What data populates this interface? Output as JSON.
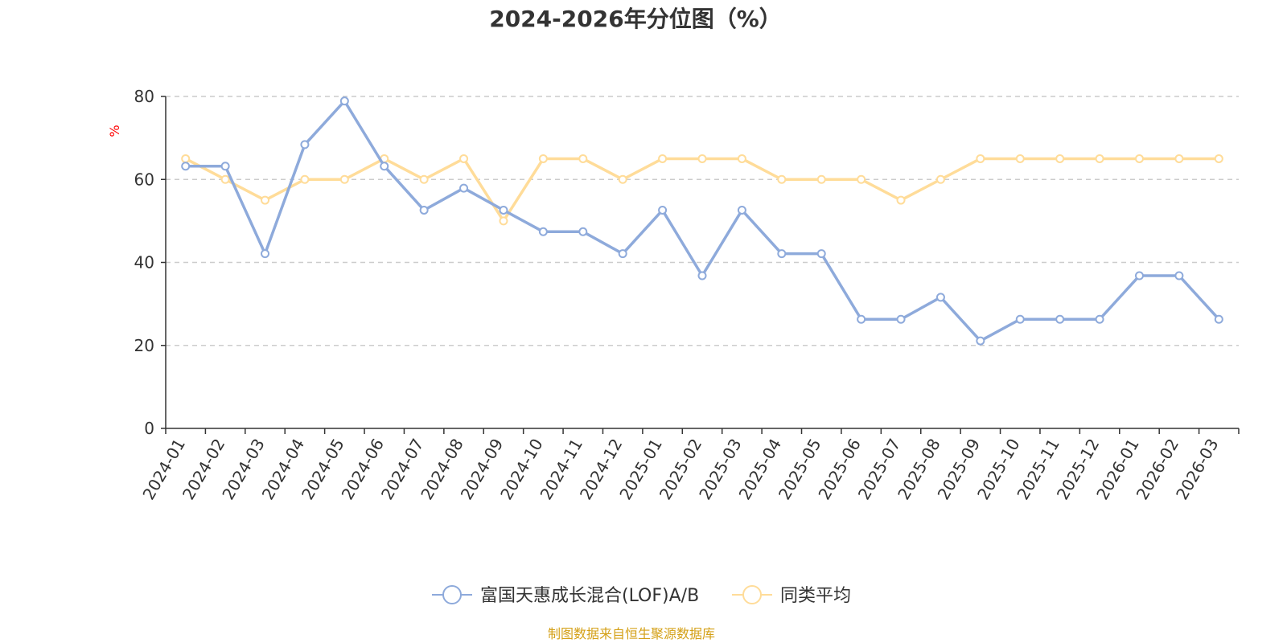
{
  "chart_data": {
    "type": "line",
    "title": "2024-2026年分位图（%）",
    "ylabel": "%",
    "ylim": [
      0,
      80
    ],
    "yticks": [
      0,
      20,
      40,
      60,
      80
    ],
    "grid": true,
    "legend_position": "bottom",
    "categories": [
      "2024-01",
      "2024-02",
      "2024-03",
      "2024-04",
      "2024-05",
      "2024-06",
      "2024-07",
      "2024-08",
      "2024-09",
      "2024-10",
      "2024-11",
      "2024-12",
      "2025-01",
      "2025-02",
      "2025-03",
      "2025-04",
      "2025-05",
      "2025-06",
      "2025-07",
      "2025-08",
      "2025-09",
      "2025-10",
      "2025-11",
      "2025-12",
      "2026-01",
      "2026-02",
      "2026-03"
    ],
    "series": [
      {
        "name": "富国天惠成长混合(LOF)A/B",
        "color": "#8eaadb",
        "values": [
          63.2,
          63.2,
          42.1,
          68.4,
          78.9,
          63.2,
          52.6,
          57.9,
          52.6,
          47.4,
          47.4,
          42.1,
          52.6,
          36.8,
          52.6,
          42.1,
          42.1,
          26.3,
          26.3,
          31.6,
          21.1,
          26.3,
          26.3,
          26.3,
          36.8,
          36.8,
          26.3
        ]
      },
      {
        "name": "同类平均",
        "color": "#ffdc99",
        "values": [
          65,
          60,
          55,
          60,
          60,
          65,
          60,
          65,
          50,
          65,
          65,
          60,
          65,
          65,
          65,
          60,
          60,
          60,
          55,
          60,
          65,
          65,
          65,
          65,
          65,
          65,
          65
        ]
      }
    ]
  },
  "source_text": "制图数据来自恒生聚源数据库",
  "colors": {
    "axis": "#333333",
    "grid": "#cccccc",
    "ylabel": "#ff0000",
    "source": "#d4a017"
  }
}
